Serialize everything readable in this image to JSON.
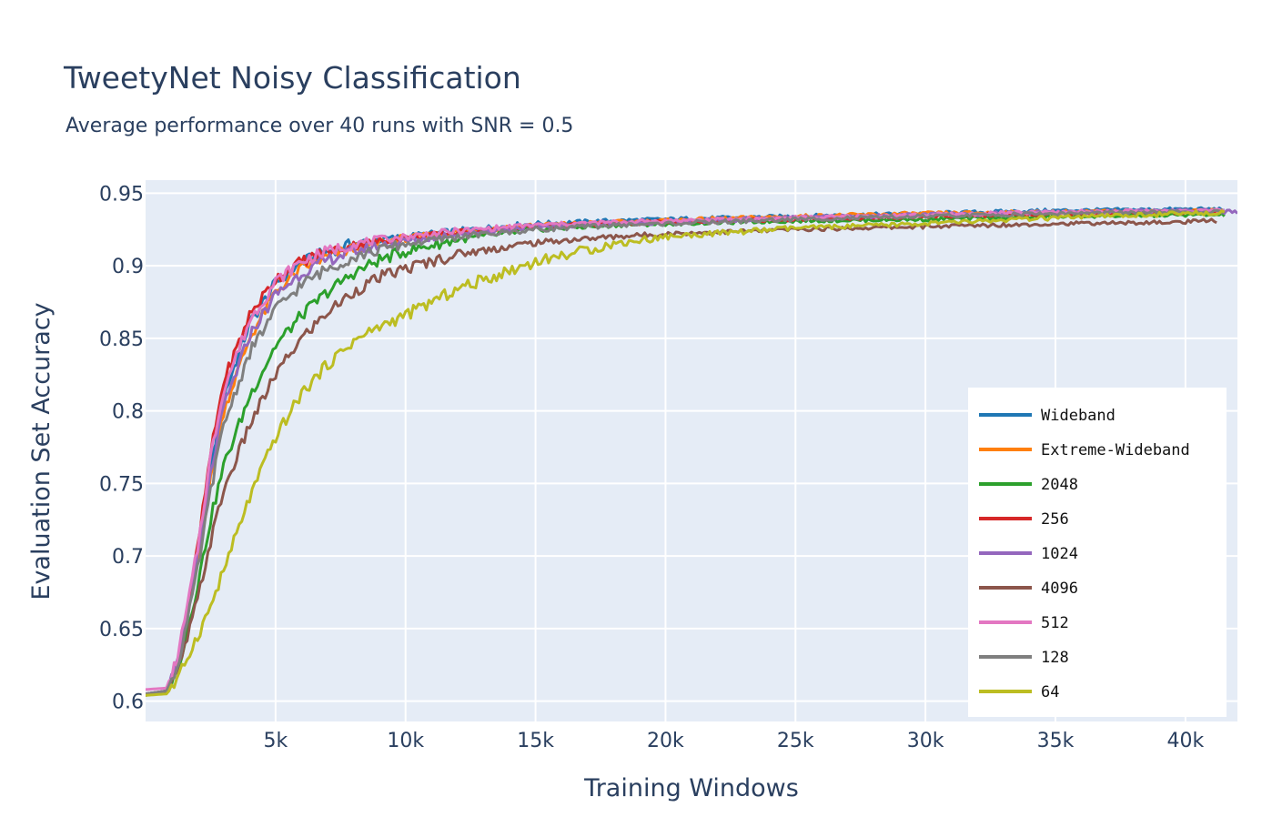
{
  "title": "TweetyNet Noisy Classification",
  "subtitle": "Average performance over 40 runs with SNR = 0.5",
  "chart_data": {
    "type": "line",
    "title": "TweetyNet Noisy Classification",
    "subtitle": "Average performance over 40 runs with SNR = 0.5",
    "xlabel": "Training Windows",
    "ylabel": "Evaluation Set Accuracy",
    "xlim": [
      0,
      42000
    ],
    "ylim": [
      0.586,
      0.959
    ],
    "x_ticks": [
      {
        "value": 5000,
        "label": "5k"
      },
      {
        "value": 10000,
        "label": "10k"
      },
      {
        "value": 15000,
        "label": "15k"
      },
      {
        "value": 20000,
        "label": "20k"
      },
      {
        "value": 25000,
        "label": "25k"
      },
      {
        "value": 30000,
        "label": "30k"
      },
      {
        "value": 35000,
        "label": "35k"
      },
      {
        "value": 40000,
        "label": "40k"
      }
    ],
    "y_ticks": [
      {
        "value": 0.6,
        "label": "0.6"
      },
      {
        "value": 0.65,
        "label": "0.65"
      },
      {
        "value": 0.7,
        "label": "0.7"
      },
      {
        "value": 0.75,
        "label": "0.75"
      },
      {
        "value": 0.8,
        "label": "0.8"
      },
      {
        "value": 0.85,
        "label": "0.85"
      },
      {
        "value": 0.9,
        "label": "0.9"
      },
      {
        "value": 0.95,
        "label": "0.95"
      }
    ],
    "grid": true,
    "legend_position": "bottom-right",
    "background": "#e5ecf6",
    "series": [
      {
        "name": "Wideband",
        "color": "#1f77b4",
        "x": [
          0,
          800,
          1200,
          1600,
          2000,
          2500,
          3000,
          4000,
          5000,
          6000,
          7000,
          8000,
          9000,
          10000,
          12000,
          15000,
          18000,
          20000,
          25000,
          30000,
          35000,
          40000,
          41500
        ],
        "y": [
          0.605,
          0.607,
          0.625,
          0.66,
          0.7,
          0.76,
          0.81,
          0.86,
          0.888,
          0.902,
          0.91,
          0.915,
          0.918,
          0.92,
          0.924,
          0.929,
          0.931,
          0.932,
          0.934,
          0.936,
          0.938,
          0.939,
          0.939
        ]
      },
      {
        "name": "Extreme-Wideband",
        "color": "#ff7f0e",
        "x": [
          0,
          800,
          1200,
          1600,
          2000,
          2500,
          3000,
          4000,
          5000,
          6000,
          7000,
          8000,
          9000,
          10000,
          12000,
          15000,
          18000,
          20000,
          25000,
          30000,
          35000,
          40000,
          41500
        ],
        "y": [
          0.605,
          0.607,
          0.624,
          0.658,
          0.697,
          0.752,
          0.8,
          0.85,
          0.882,
          0.898,
          0.906,
          0.912,
          0.916,
          0.919,
          0.923,
          0.928,
          0.93,
          0.931,
          0.934,
          0.936,
          0.937,
          0.938,
          0.938
        ]
      },
      {
        "name": "2048",
        "color": "#2ca02c",
        "x": [
          0,
          800,
          1200,
          1600,
          2000,
          2500,
          3000,
          4000,
          5000,
          6000,
          7000,
          8000,
          9000,
          10000,
          12000,
          15000,
          18000,
          20000,
          25000,
          30000,
          35000,
          40000,
          41500
        ],
        "y": [
          0.604,
          0.606,
          0.62,
          0.648,
          0.68,
          0.725,
          0.762,
          0.81,
          0.845,
          0.866,
          0.882,
          0.895,
          0.904,
          0.91,
          0.918,
          0.925,
          0.928,
          0.929,
          0.931,
          0.932,
          0.934,
          0.935,
          0.935
        ]
      },
      {
        "name": "256",
        "color": "#d62728",
        "x": [
          0,
          800,
          1200,
          1600,
          2000,
          2500,
          3000,
          4000,
          5000,
          6000,
          7000,
          8000,
          9000,
          10000,
          12000,
          15000,
          18000,
          20000,
          25000,
          30000,
          35000,
          40000,
          41500
        ],
        "y": [
          0.605,
          0.607,
          0.626,
          0.662,
          0.705,
          0.77,
          0.82,
          0.866,
          0.891,
          0.903,
          0.91,
          0.914,
          0.917,
          0.919,
          0.923,
          0.927,
          0.929,
          0.93,
          0.932,
          0.934,
          0.936,
          0.937,
          0.937
        ]
      },
      {
        "name": "1024",
        "color": "#9467bd",
        "x": [
          0,
          800,
          1200,
          1600,
          2000,
          2500,
          3000,
          4000,
          5000,
          6000,
          7000,
          8000,
          9000,
          10000,
          12000,
          15000,
          18000,
          20000,
          25000,
          30000,
          35000,
          40000,
          42000
        ],
        "y": [
          0.605,
          0.607,
          0.624,
          0.658,
          0.698,
          0.756,
          0.802,
          0.852,
          0.88,
          0.895,
          0.904,
          0.91,
          0.914,
          0.917,
          0.922,
          0.927,
          0.929,
          0.93,
          0.933,
          0.935,
          0.937,
          0.938,
          0.937
        ]
      },
      {
        "name": "4096",
        "color": "#8c564b",
        "x": [
          0,
          800,
          1200,
          1600,
          2000,
          2500,
          3000,
          4000,
          5000,
          6000,
          7000,
          8000,
          9000,
          10000,
          12000,
          15000,
          18000,
          20000,
          25000,
          30000,
          35000,
          40000,
          41200
        ],
        "y": [
          0.604,
          0.606,
          0.618,
          0.643,
          0.67,
          0.71,
          0.745,
          0.79,
          0.825,
          0.85,
          0.868,
          0.882,
          0.892,
          0.898,
          0.908,
          0.916,
          0.92,
          0.922,
          0.925,
          0.927,
          0.929,
          0.93,
          0.931
        ]
      },
      {
        "name": "512",
        "color": "#e377c2",
        "x": [
          0,
          800,
          1200,
          1600,
          2000,
          2500,
          3000,
          4000,
          5000,
          6000,
          7000,
          8000,
          9000,
          10000,
          12000,
          15000,
          18000,
          20000,
          25000,
          30000,
          35000,
          40000,
          41500
        ],
        "y": [
          0.608,
          0.609,
          0.628,
          0.664,
          0.705,
          0.768,
          0.815,
          0.862,
          0.889,
          0.903,
          0.91,
          0.915,
          0.918,
          0.92,
          0.924,
          0.928,
          0.93,
          0.931,
          0.933,
          0.935,
          0.937,
          0.938,
          0.938
        ]
      },
      {
        "name": "128",
        "color": "#7f7f7f",
        "x": [
          0,
          800,
          1200,
          1600,
          2000,
          2500,
          3000,
          4000,
          5000,
          6000,
          7000,
          8000,
          9000,
          10000,
          12000,
          15000,
          18000,
          20000,
          25000,
          30000,
          35000,
          40000,
          41500
        ],
        "y": [
          0.605,
          0.607,
          0.622,
          0.654,
          0.69,
          0.745,
          0.79,
          0.84,
          0.87,
          0.887,
          0.898,
          0.906,
          0.911,
          0.915,
          0.92,
          0.925,
          0.928,
          0.929,
          0.932,
          0.934,
          0.936,
          0.937,
          0.937
        ]
      },
      {
        "name": "64",
        "color": "#bcbd22",
        "x": [
          0,
          800,
          1200,
          1600,
          2000,
          2500,
          3000,
          4000,
          5000,
          6000,
          7000,
          8000,
          9000,
          10000,
          12000,
          15000,
          18000,
          20000,
          25000,
          30000,
          35000,
          40000,
          41500
        ],
        "y": [
          0.604,
          0.605,
          0.613,
          0.63,
          0.645,
          0.665,
          0.69,
          0.74,
          0.782,
          0.812,
          0.832,
          0.848,
          0.858,
          0.866,
          0.884,
          0.903,
          0.915,
          0.92,
          0.926,
          0.929,
          0.933,
          0.936,
          0.937
        ]
      }
    ]
  }
}
